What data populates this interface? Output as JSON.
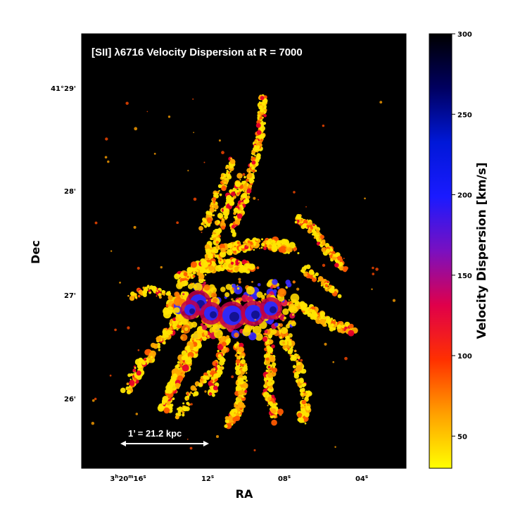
{
  "title": "[SII] λ6716 Velocity Dispersion at R = 7000",
  "xlabel": "RA",
  "ylabel": "Dec",
  "x_ticks": [
    {
      "label": "3h20m16s",
      "pre": "3",
      "h": "h",
      "mid": "20",
      "m": "m",
      "sec": "16",
      "s": "s"
    },
    {
      "label": "12s",
      "pre": "12",
      "s": "s"
    },
    {
      "label": "08s",
      "pre": "08",
      "s": "s"
    },
    {
      "label": "04s",
      "pre": "04",
      "s": "s"
    }
  ],
  "y_ticks": [
    "41°29'",
    "28'",
    "27'",
    "26'"
  ],
  "scale_bar": "1’ = 21.2 kpc",
  "colorbar": {
    "label": "Velocity Dispersion [km/s]",
    "ticks": [
      "50",
      "100",
      "150",
      "200",
      "250",
      "300"
    ],
    "min": 30,
    "max": 300,
    "colors": [
      "#ffff00",
      "#ffa000",
      "#ff3000",
      "#e0004a",
      "#7a10c0",
      "#1a1aff",
      "#0018d8",
      "#000060",
      "#000000"
    ]
  }
}
